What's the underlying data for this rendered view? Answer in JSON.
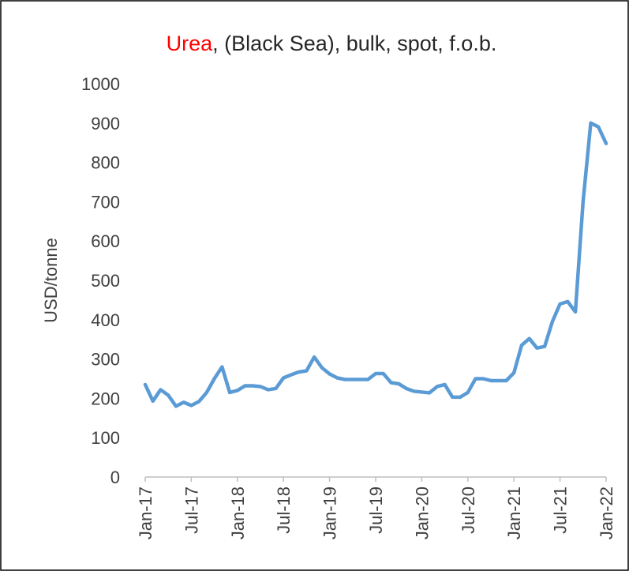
{
  "chart_data": {
    "type": "line",
    "title": [
      "Urea",
      ", (Black Sea), bulk, spot, f.o.b."
    ],
    "title_colors": [
      "#ff0000",
      "#262626"
    ],
    "y_label": "USD/tonne",
    "categories": [
      "Jan-17",
      null,
      null,
      null,
      null,
      null,
      "Jul-17",
      null,
      null,
      null,
      null,
      null,
      "Jan-18",
      null,
      null,
      null,
      null,
      null,
      "Jul-18",
      null,
      null,
      null,
      null,
      null,
      "Jan-19",
      null,
      null,
      null,
      null,
      null,
      "Jul-19",
      null,
      null,
      null,
      null,
      null,
      "Jan-20",
      null,
      null,
      null,
      null,
      null,
      "Jul-20",
      null,
      null,
      null,
      null,
      null,
      "Jan-21",
      null,
      null,
      null,
      null,
      null,
      "Jul-21",
      null,
      null,
      null,
      null,
      null,
      "Jan-22"
    ],
    "series": [
      {
        "name": "Urea",
        "color": "#5b9bd5",
        "values": [
          235,
          193,
          222,
          208,
          180,
          190,
          182,
          192,
          215,
          250,
          280,
          215,
          220,
          232,
          232,
          230,
          222,
          225,
          252,
          260,
          267,
          270,
          305,
          278,
          262,
          252,
          248,
          248,
          248,
          248,
          263,
          263,
          240,
          237,
          225,
          218,
          216,
          214,
          230,
          235,
          203,
          203,
          215,
          250,
          250,
          245,
          245,
          245,
          265,
          335,
          352,
          328,
          332,
          395,
          440,
          446,
          420,
          700,
          900,
          890,
          848
        ]
      }
    ],
    "ylim": [
      0,
      1000
    ],
    "yticks": [
      0,
      100,
      200,
      300,
      400,
      500,
      600,
      700,
      800,
      900,
      1000
    ],
    "grid": false
  }
}
